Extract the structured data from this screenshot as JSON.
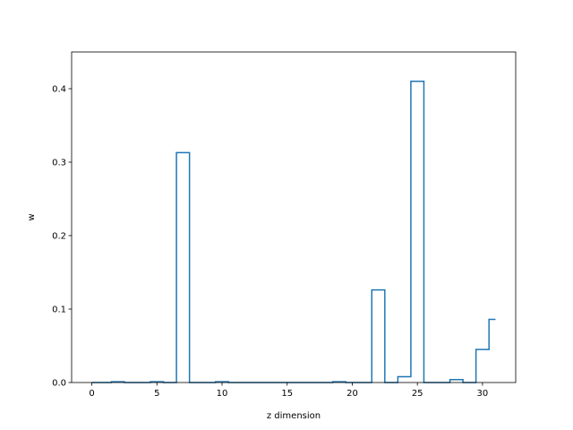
{
  "chart_data": {
    "type": "line",
    "step": "mid",
    "title": "",
    "xlabel": "z dimension",
    "ylabel": "w",
    "xlim": [
      -1.55,
      32.55
    ],
    "ylim": [
      0,
      0.45
    ],
    "xticks": [
      0,
      5,
      10,
      15,
      20,
      25,
      30
    ],
    "yticks": [
      0.0,
      0.1,
      0.2,
      0.3,
      0.4
    ],
    "ytick_labels": [
      "0.0",
      "0.1",
      "0.2",
      "0.3",
      "0.4"
    ],
    "grid": false,
    "series": [
      {
        "color": "#1f77b4",
        "x": [
          0,
          1,
          2,
          3,
          4,
          5,
          6,
          7,
          8,
          9,
          10,
          11,
          12,
          13,
          14,
          15,
          16,
          17,
          18,
          19,
          20,
          21,
          22,
          23,
          24,
          25,
          26,
          27,
          28,
          29,
          30,
          31
        ],
        "y": [
          0.0,
          0.0,
          0.001,
          0.0,
          0.0,
          0.001,
          0.0,
          0.313,
          0.0,
          0.0,
          0.001,
          0.0,
          0.0,
          0.0,
          0.0,
          0.0,
          0.0,
          0.0,
          0.0,
          0.001,
          0.0,
          0.0,
          0.126,
          0.0,
          0.008,
          0.41,
          0.0,
          0.0,
          0.004,
          0.0,
          0.045,
          0.086
        ]
      }
    ]
  }
}
